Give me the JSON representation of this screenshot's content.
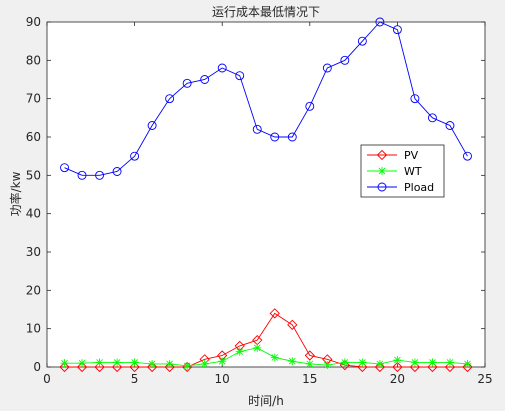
{
  "chart_data": {
    "type": "line",
    "title": "运行成本最低情况下",
    "xlabel": "时间/h",
    "ylabel": "功率/kw",
    "xlim": [
      0,
      25
    ],
    "ylim": [
      0,
      90
    ],
    "xticks": [
      0,
      5,
      10,
      15,
      20,
      25
    ],
    "yticks": [
      0,
      10,
      20,
      30,
      40,
      50,
      60,
      70,
      80,
      90
    ],
    "grid": false,
    "legend_position": "right",
    "x": [
      1,
      2,
      3,
      4,
      5,
      6,
      7,
      8,
      9,
      10,
      11,
      12,
      13,
      14,
      15,
      16,
      17,
      18,
      19,
      20,
      21,
      22,
      23,
      24
    ],
    "series": [
      {
        "name": "PV",
        "color": "#ff0000",
        "marker": "diamond",
        "values": [
          0,
          0,
          0,
          0,
          0,
          0,
          0,
          0,
          2.0,
          3.0,
          5.5,
          7.0,
          14.0,
          11.0,
          3.0,
          2.0,
          0.5,
          0,
          0,
          0,
          0,
          0,
          0,
          0
        ]
      },
      {
        "name": "WT",
        "color": "#00ff00",
        "marker": "asterisk",
        "values": [
          1.0,
          1.0,
          1.2,
          1.2,
          1.2,
          0.8,
          0.8,
          0.3,
          0.8,
          1.5,
          4.0,
          5.0,
          2.5,
          1.5,
          0.8,
          0.5,
          1.2,
          1.2,
          0.8,
          1.8,
          1.2,
          1.2,
          1.2,
          0.8
        ]
      },
      {
        "name": "Pload",
        "color": "#0000ff",
        "marker": "circle",
        "values": [
          52,
          50,
          50,
          51,
          55,
          63,
          70,
          74,
          75,
          78,
          76,
          62,
          60,
          60,
          68,
          78,
          80,
          85,
          90,
          88,
          70,
          65,
          63,
          55
        ]
      }
    ]
  }
}
